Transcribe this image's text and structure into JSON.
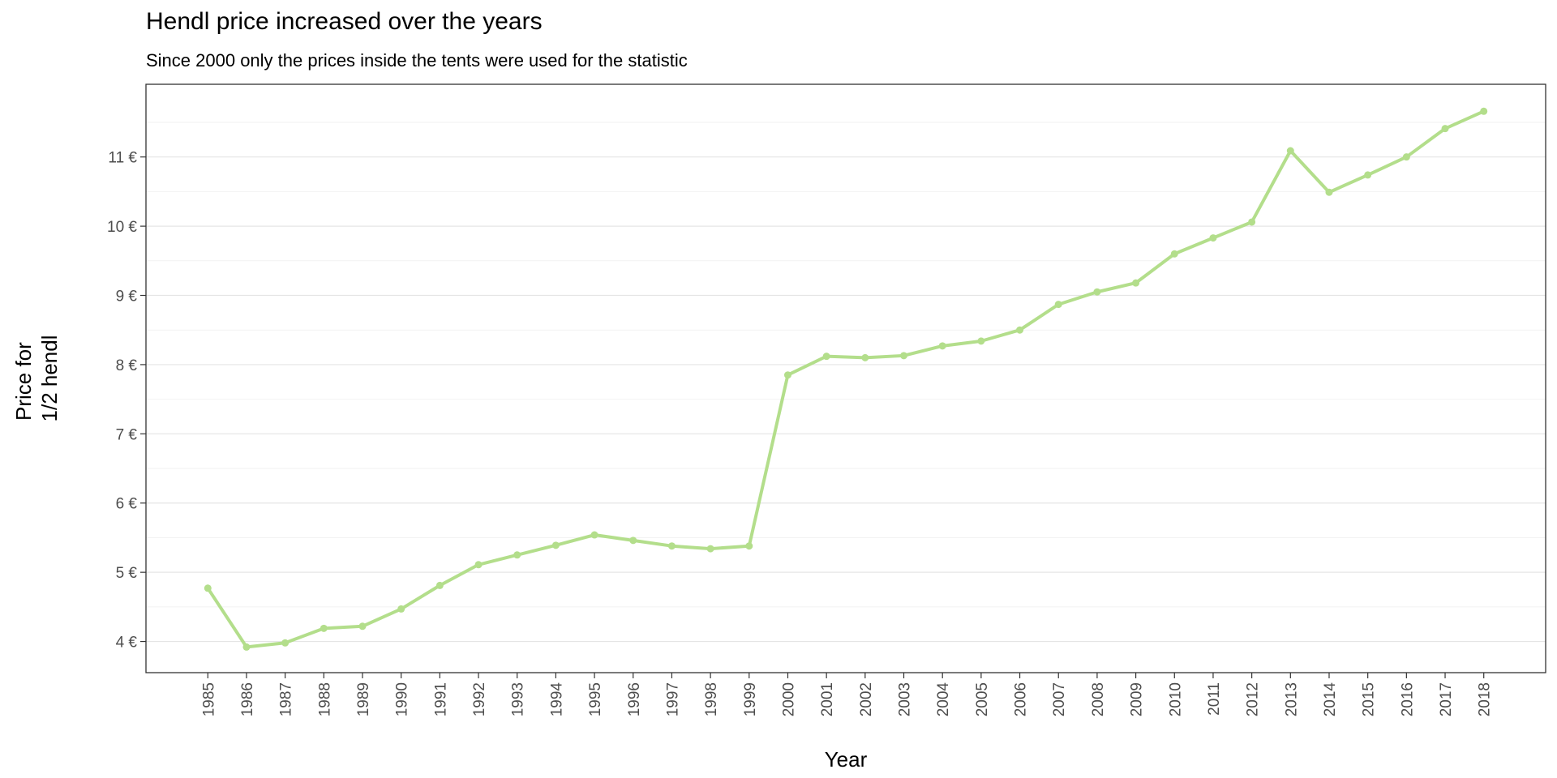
{
  "chart_data": {
    "type": "line",
    "title": "Hendl price increased over the years",
    "subtitle": "Since 2000 only the prices inside the tents were used for the statistic",
    "xlabel": "Year",
    "ylabel_lines": [
      "Price for",
      "1/2 hendl"
    ],
    "ylim": [
      3.55,
      12.05
    ],
    "y_ticks": [
      4,
      5,
      6,
      7,
      8,
      9,
      10,
      11
    ],
    "y_tick_suffix": " €",
    "grid": true,
    "line_color": "#b3de8b",
    "x": [
      1985,
      1986,
      1987,
      1988,
      1989,
      1990,
      1991,
      1992,
      1993,
      1994,
      1995,
      1996,
      1997,
      1998,
      1999,
      2000,
      2001,
      2002,
      2003,
      2004,
      2005,
      2006,
      2007,
      2008,
      2009,
      2010,
      2011,
      2012,
      2013,
      2014,
      2015,
      2016,
      2017,
      2018
    ],
    "x_tick_labels": [
      "1985",
      "1986",
      "1987",
      "1988",
      "1989",
      "1990",
      "1991",
      "1992",
      "1993",
      "1994",
      "1995",
      "1996",
      "1997",
      "1998",
      "1999",
      "2000",
      "2001",
      "2002",
      "2003",
      "2004",
      "2005",
      "2006",
      "2007",
      "2008",
      "2009",
      "2010",
      "2011",
      "2012",
      "2013",
      "2014",
      "2015",
      "2016",
      "2017",
      "2018"
    ],
    "y": [
      4.77,
      3.92,
      3.98,
      4.19,
      4.22,
      4.47,
      4.81,
      5.11,
      5.25,
      5.39,
      5.54,
      5.46,
      5.38,
      5.34,
      5.38,
      7.85,
      8.12,
      8.1,
      8.13,
      8.27,
      8.34,
      8.5,
      8.87,
      9.05,
      9.18,
      9.6,
      9.83,
      10.06,
      11.09,
      10.49,
      10.74,
      11.0,
      11.41,
      11.66
    ]
  }
}
